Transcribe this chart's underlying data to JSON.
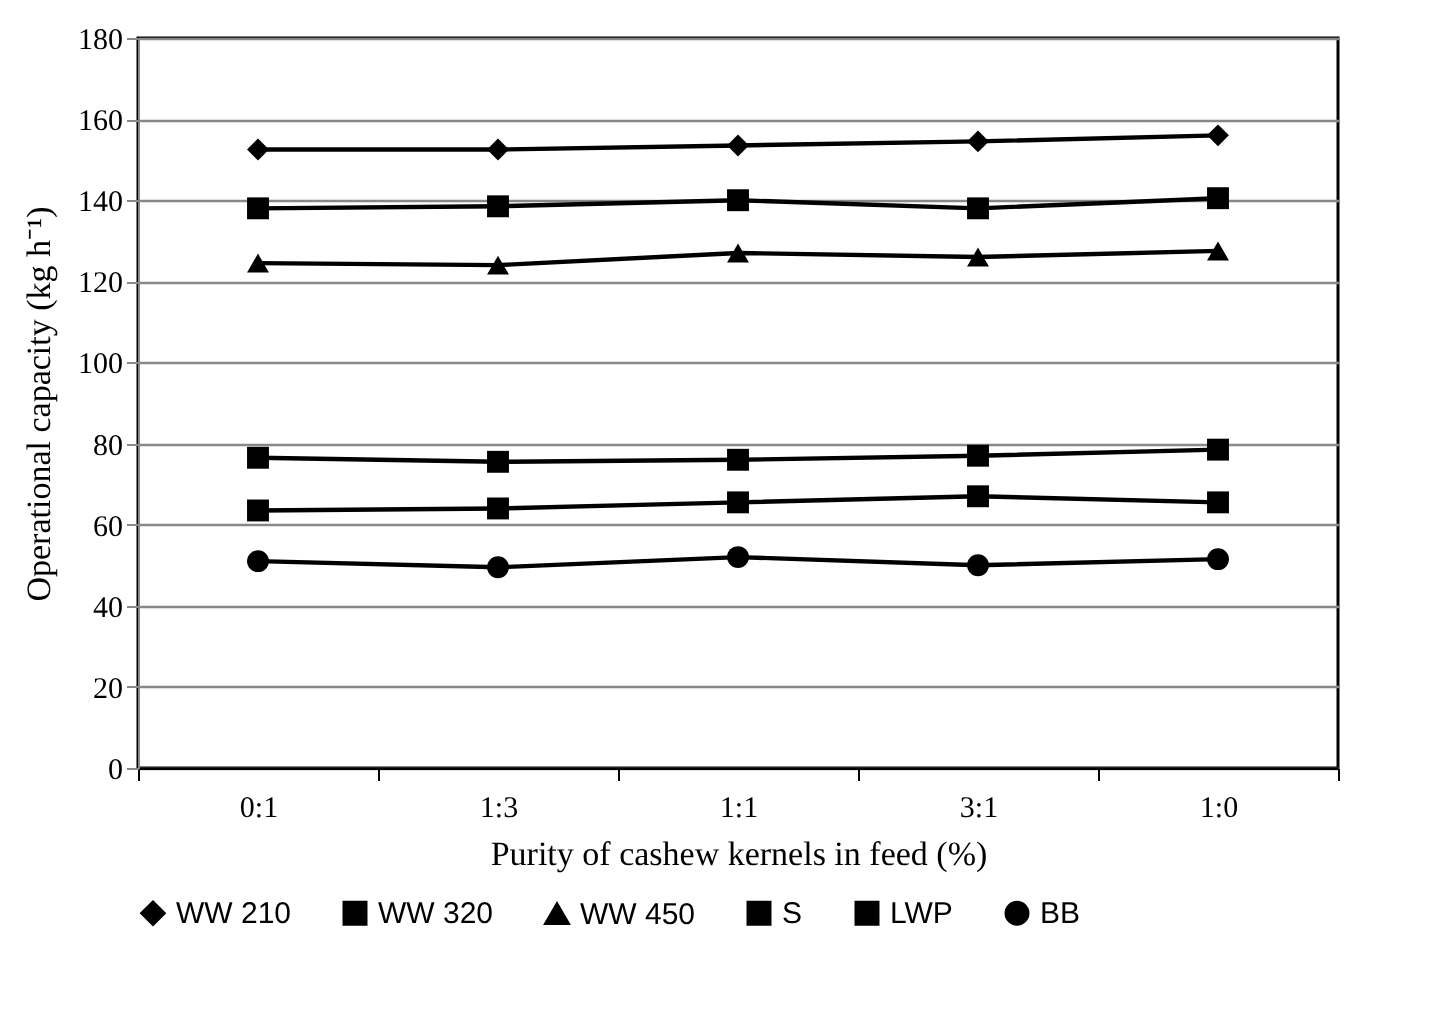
{
  "chart_data": {
    "type": "line",
    "xlabel": "Purity of cashew kernels in feed (%)",
    "ylabel": "Operational capacity (kg h⁻¹)",
    "categories": [
      "0:1",
      "1:3",
      "1:1",
      "3:1",
      "1:0"
    ],
    "series": [
      {
        "name": "WW 210",
        "color": "#000000",
        "marker": "diamond",
        "values": [
          152.5,
          152.5,
          153.5,
          154.5,
          156
        ]
      },
      {
        "name": "WW 320",
        "color": "#000000",
        "marker": "square",
        "values": [
          138,
          138.5,
          140,
          138,
          140.5
        ]
      },
      {
        "name": "WW 450",
        "color": "#000000",
        "marker": "triangle",
        "values": [
          124.5,
          124,
          127,
          126,
          127.5
        ]
      },
      {
        "name": "S",
        "color": "#000000",
        "marker": "square",
        "values": [
          76.5,
          75.5,
          76,
          77,
          78.5
        ]
      },
      {
        "name": "LWP",
        "color": "#000000",
        "marker": "square",
        "values": [
          63.5,
          64,
          65.5,
          67,
          65.5
        ]
      },
      {
        "name": "BB",
        "color": "#000000",
        "marker": "circle",
        "values": [
          51,
          49.5,
          52,
          50,
          51.5
        ]
      }
    ],
    "ylim": [
      0,
      180
    ],
    "yticks": [
      0,
      20,
      40,
      60,
      80,
      100,
      120,
      140,
      160,
      180
    ],
    "grid": "y",
    "legend": "bottom"
  }
}
